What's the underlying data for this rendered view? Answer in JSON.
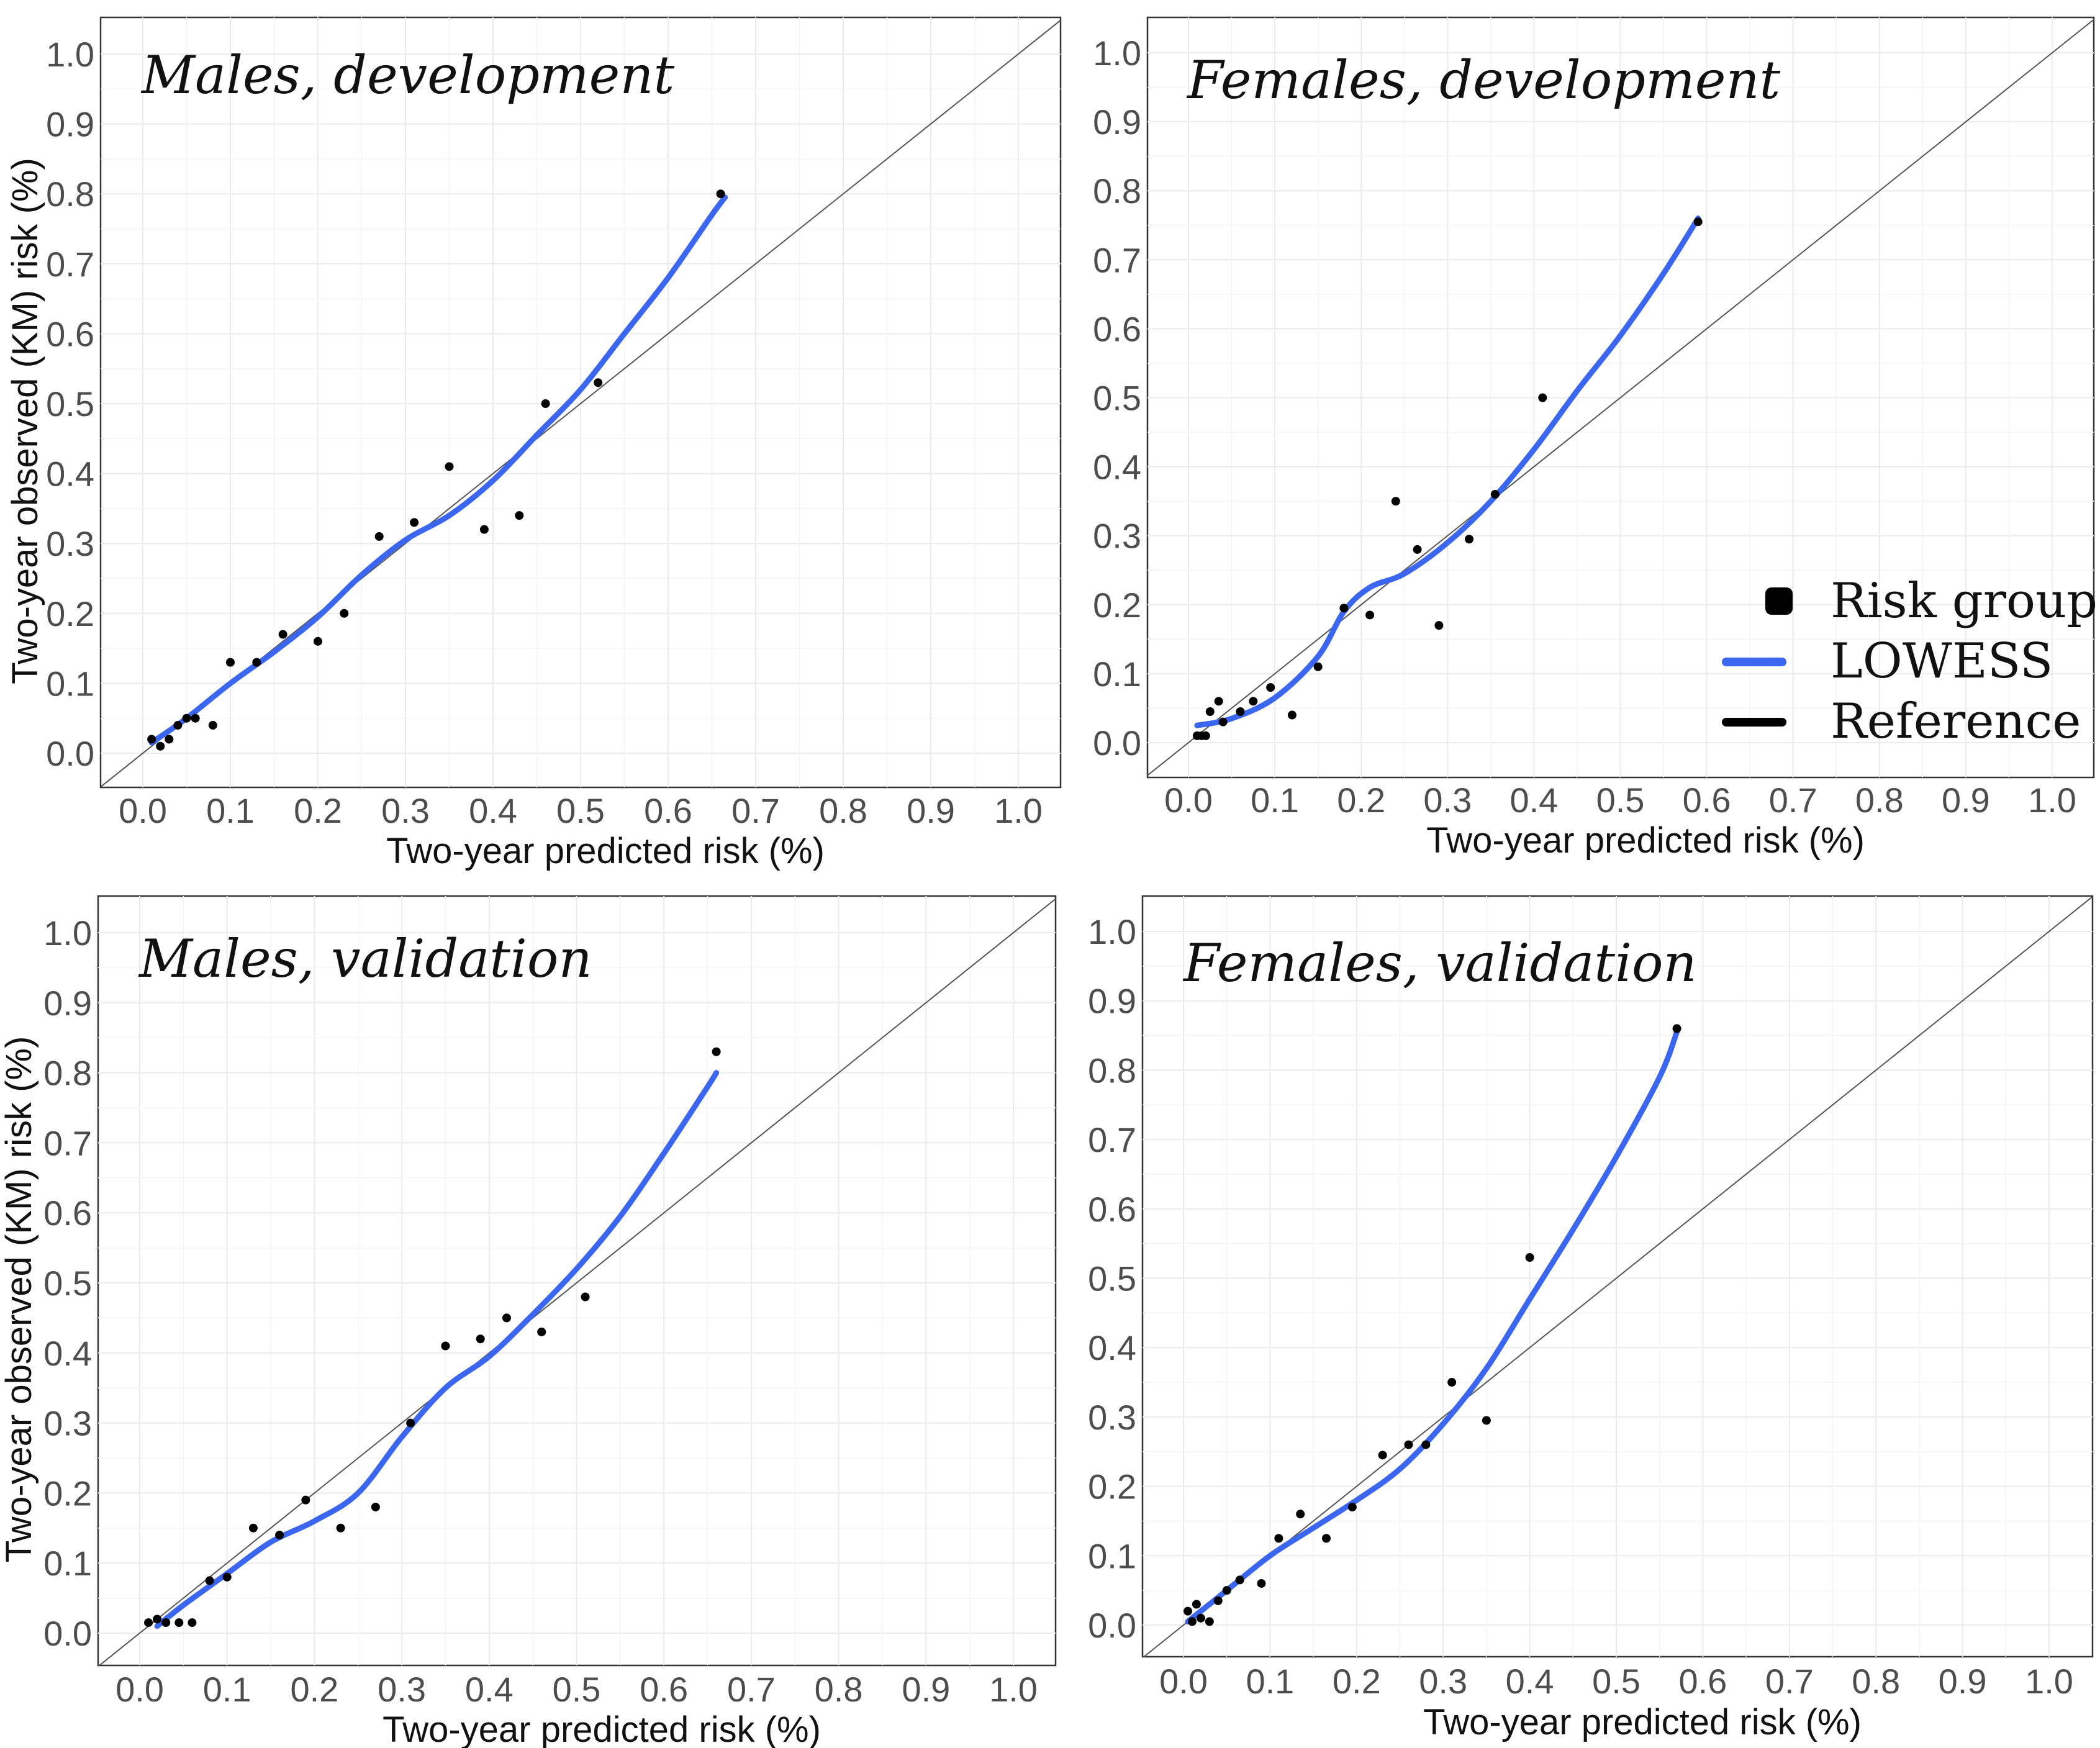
{
  "chart_data": [
    {
      "type": "scatter",
      "title": "Males, development",
      "xlabel": "Two-year predicted risk (%)",
      "ylabel": "Two-year observed (KM) risk (%)",
      "xlim": [
        0,
        1
      ],
      "ylim": [
        0,
        1
      ],
      "x_ticks": [
        "0.0",
        "0.1",
        "0.2",
        "0.3",
        "0.4",
        "0.5",
        "0.6",
        "0.7",
        "0.8",
        "0.9",
        "1.0"
      ],
      "y_ticks": [
        "0.0",
        "0.1",
        "0.2",
        "0.3",
        "0.4",
        "0.5",
        "0.6",
        "0.7",
        "0.8",
        "0.9",
        "1.0"
      ],
      "points": [
        [
          0.01,
          0.02
        ],
        [
          0.02,
          0.01
        ],
        [
          0.03,
          0.02
        ],
        [
          0.04,
          0.04
        ],
        [
          0.05,
          0.05
        ],
        [
          0.06,
          0.05
        ],
        [
          0.08,
          0.04
        ],
        [
          0.1,
          0.13
        ],
        [
          0.13,
          0.13
        ],
        [
          0.16,
          0.17
        ],
        [
          0.2,
          0.16
        ],
        [
          0.23,
          0.2
        ],
        [
          0.27,
          0.31
        ],
        [
          0.31,
          0.33
        ],
        [
          0.35,
          0.41
        ],
        [
          0.39,
          0.32
        ],
        [
          0.43,
          0.34
        ],
        [
          0.46,
          0.5
        ],
        [
          0.52,
          0.53
        ],
        [
          0.66,
          0.8
        ]
      ],
      "lowess": [
        [
          0.01,
          0.015
        ],
        [
          0.05,
          0.05
        ],
        [
          0.1,
          0.1
        ],
        [
          0.15,
          0.145
        ],
        [
          0.2,
          0.195
        ],
        [
          0.25,
          0.255
        ],
        [
          0.3,
          0.305
        ],
        [
          0.35,
          0.34
        ],
        [
          0.4,
          0.39
        ],
        [
          0.45,
          0.455
        ],
        [
          0.5,
          0.52
        ],
        [
          0.55,
          0.6
        ],
        [
          0.6,
          0.68
        ],
        [
          0.65,
          0.77
        ],
        [
          0.665,
          0.795
        ]
      ]
    },
    {
      "type": "scatter",
      "title": "Females, development",
      "xlabel": "Two-year predicted risk (%)",
      "ylabel": "",
      "xlim": [
        0,
        1
      ],
      "ylim": [
        0,
        1
      ],
      "x_ticks": [
        "0.0",
        "0.1",
        "0.2",
        "0.3",
        "0.4",
        "0.5",
        "0.6",
        "0.7",
        "0.8",
        "0.9",
        "1.0"
      ],
      "y_ticks": [
        "0.0",
        "0.1",
        "0.2",
        "0.3",
        "0.4",
        "0.5",
        "0.6",
        "0.7",
        "0.8",
        "0.9",
        "1.0"
      ],
      "points": [
        [
          0.01,
          0.01
        ],
        [
          0.015,
          0.01
        ],
        [
          0.02,
          0.01
        ],
        [
          0.025,
          0.045
        ],
        [
          0.035,
          0.06
        ],
        [
          0.04,
          0.03
        ],
        [
          0.06,
          0.045
        ],
        [
          0.075,
          0.06
        ],
        [
          0.095,
          0.08
        ],
        [
          0.12,
          0.04
        ],
        [
          0.15,
          0.11
        ],
        [
          0.18,
          0.195
        ],
        [
          0.21,
          0.185
        ],
        [
          0.24,
          0.35
        ],
        [
          0.265,
          0.28
        ],
        [
          0.29,
          0.17
        ],
        [
          0.325,
          0.295
        ],
        [
          0.355,
          0.36
        ],
        [
          0.41,
          0.5
        ],
        [
          0.59,
          0.755
        ]
      ],
      "lowess": [
        [
          0.01,
          0.025
        ],
        [
          0.05,
          0.035
        ],
        [
          0.1,
          0.065
        ],
        [
          0.15,
          0.125
        ],
        [
          0.18,
          0.19
        ],
        [
          0.21,
          0.225
        ],
        [
          0.25,
          0.245
        ],
        [
          0.3,
          0.29
        ],
        [
          0.35,
          0.35
        ],
        [
          0.4,
          0.425
        ],
        [
          0.45,
          0.51
        ],
        [
          0.5,
          0.59
        ],
        [
          0.55,
          0.68
        ],
        [
          0.59,
          0.76
        ]
      ]
    },
    {
      "type": "scatter",
      "title": "Males, validation",
      "xlabel": "Two-year predicted risk (%)",
      "ylabel": "Two-year observed (KM) risk (%)",
      "xlim": [
        0,
        1
      ],
      "ylim": [
        0,
        1
      ],
      "x_ticks": [
        "0.0",
        "0.1",
        "0.2",
        "0.3",
        "0.4",
        "0.5",
        "0.6",
        "0.7",
        "0.8",
        "0.9",
        "1.0"
      ],
      "y_ticks": [
        "0.0",
        "0.1",
        "0.2",
        "0.3",
        "0.4",
        "0.5",
        "0.6",
        "0.7",
        "0.8",
        "0.9",
        "1.0"
      ],
      "points": [
        [
          0.01,
          0.015
        ],
        [
          0.02,
          0.02
        ],
        [
          0.03,
          0.015
        ],
        [
          0.045,
          0.015
        ],
        [
          0.06,
          0.015
        ],
        [
          0.08,
          0.075
        ],
        [
          0.1,
          0.08
        ],
        [
          0.13,
          0.15
        ],
        [
          0.16,
          0.14
        ],
        [
          0.19,
          0.19
        ],
        [
          0.23,
          0.15
        ],
        [
          0.27,
          0.18
        ],
        [
          0.31,
          0.3
        ],
        [
          0.35,
          0.41
        ],
        [
          0.39,
          0.42
        ],
        [
          0.42,
          0.45
        ],
        [
          0.46,
          0.43
        ],
        [
          0.51,
          0.48
        ],
        [
          0.66,
          0.83
        ]
      ],
      "lowess": [
        [
          0.02,
          0.01
        ],
        [
          0.05,
          0.04
        ],
        [
          0.1,
          0.085
        ],
        [
          0.15,
          0.13
        ],
        [
          0.2,
          0.16
        ],
        [
          0.25,
          0.2
        ],
        [
          0.3,
          0.28
        ],
        [
          0.35,
          0.35
        ],
        [
          0.4,
          0.395
        ],
        [
          0.45,
          0.455
        ],
        [
          0.5,
          0.52
        ],
        [
          0.55,
          0.595
        ],
        [
          0.6,
          0.685
        ],
        [
          0.65,
          0.78
        ],
        [
          0.66,
          0.8
        ]
      ]
    },
    {
      "type": "scatter",
      "title": "Females, validation",
      "xlabel": "Two-year predicted risk (%)",
      "ylabel": "",
      "xlim": [
        0,
        1
      ],
      "ylim": [
        0,
        1
      ],
      "x_ticks": [
        "0.0",
        "0.1",
        "0.2",
        "0.3",
        "0.4",
        "0.5",
        "0.6",
        "0.7",
        "0.8",
        "0.9",
        "1.0"
      ],
      "y_ticks": [
        "0.0",
        "0.1",
        "0.2",
        "0.3",
        "0.4",
        "0.5",
        "0.6",
        "0.7",
        "0.8",
        "0.9",
        "1.0"
      ],
      "points": [
        [
          0.005,
          0.02
        ],
        [
          0.01,
          0.005
        ],
        [
          0.015,
          0.03
        ],
        [
          0.02,
          0.01
        ],
        [
          0.03,
          0.005
        ],
        [
          0.04,
          0.035
        ],
        [
          0.05,
          0.05
        ],
        [
          0.065,
          0.065
        ],
        [
          0.09,
          0.06
        ],
        [
          0.11,
          0.125
        ],
        [
          0.135,
          0.16
        ],
        [
          0.165,
          0.125
        ],
        [
          0.195,
          0.17
        ],
        [
          0.23,
          0.245
        ],
        [
          0.26,
          0.26
        ],
        [
          0.28,
          0.26
        ],
        [
          0.31,
          0.35
        ],
        [
          0.35,
          0.295
        ],
        [
          0.4,
          0.53
        ],
        [
          0.57,
          0.86
        ]
      ],
      "lowess": [
        [
          0.005,
          0.005
        ],
        [
          0.05,
          0.05
        ],
        [
          0.1,
          0.1
        ],
        [
          0.15,
          0.14
        ],
        [
          0.2,
          0.18
        ],
        [
          0.25,
          0.225
        ],
        [
          0.3,
          0.29
        ],
        [
          0.35,
          0.37
        ],
        [
          0.4,
          0.47
        ],
        [
          0.45,
          0.57
        ],
        [
          0.5,
          0.675
        ],
        [
          0.55,
          0.79
        ],
        [
          0.57,
          0.855
        ]
      ]
    }
  ],
  "legend": {
    "position": "right of Females, development panel",
    "items": [
      {
        "label": "Risk group",
        "kind": "point"
      },
      {
        "label": "LOWESS",
        "kind": "line",
        "color": "#3b66f0"
      },
      {
        "label": "Reference",
        "kind": "line",
        "color": "#000000"
      }
    ]
  },
  "colors": {
    "lowess": "#3b66f0",
    "points": "#000000",
    "reference": "#555555",
    "grid": "#ebebeb"
  }
}
